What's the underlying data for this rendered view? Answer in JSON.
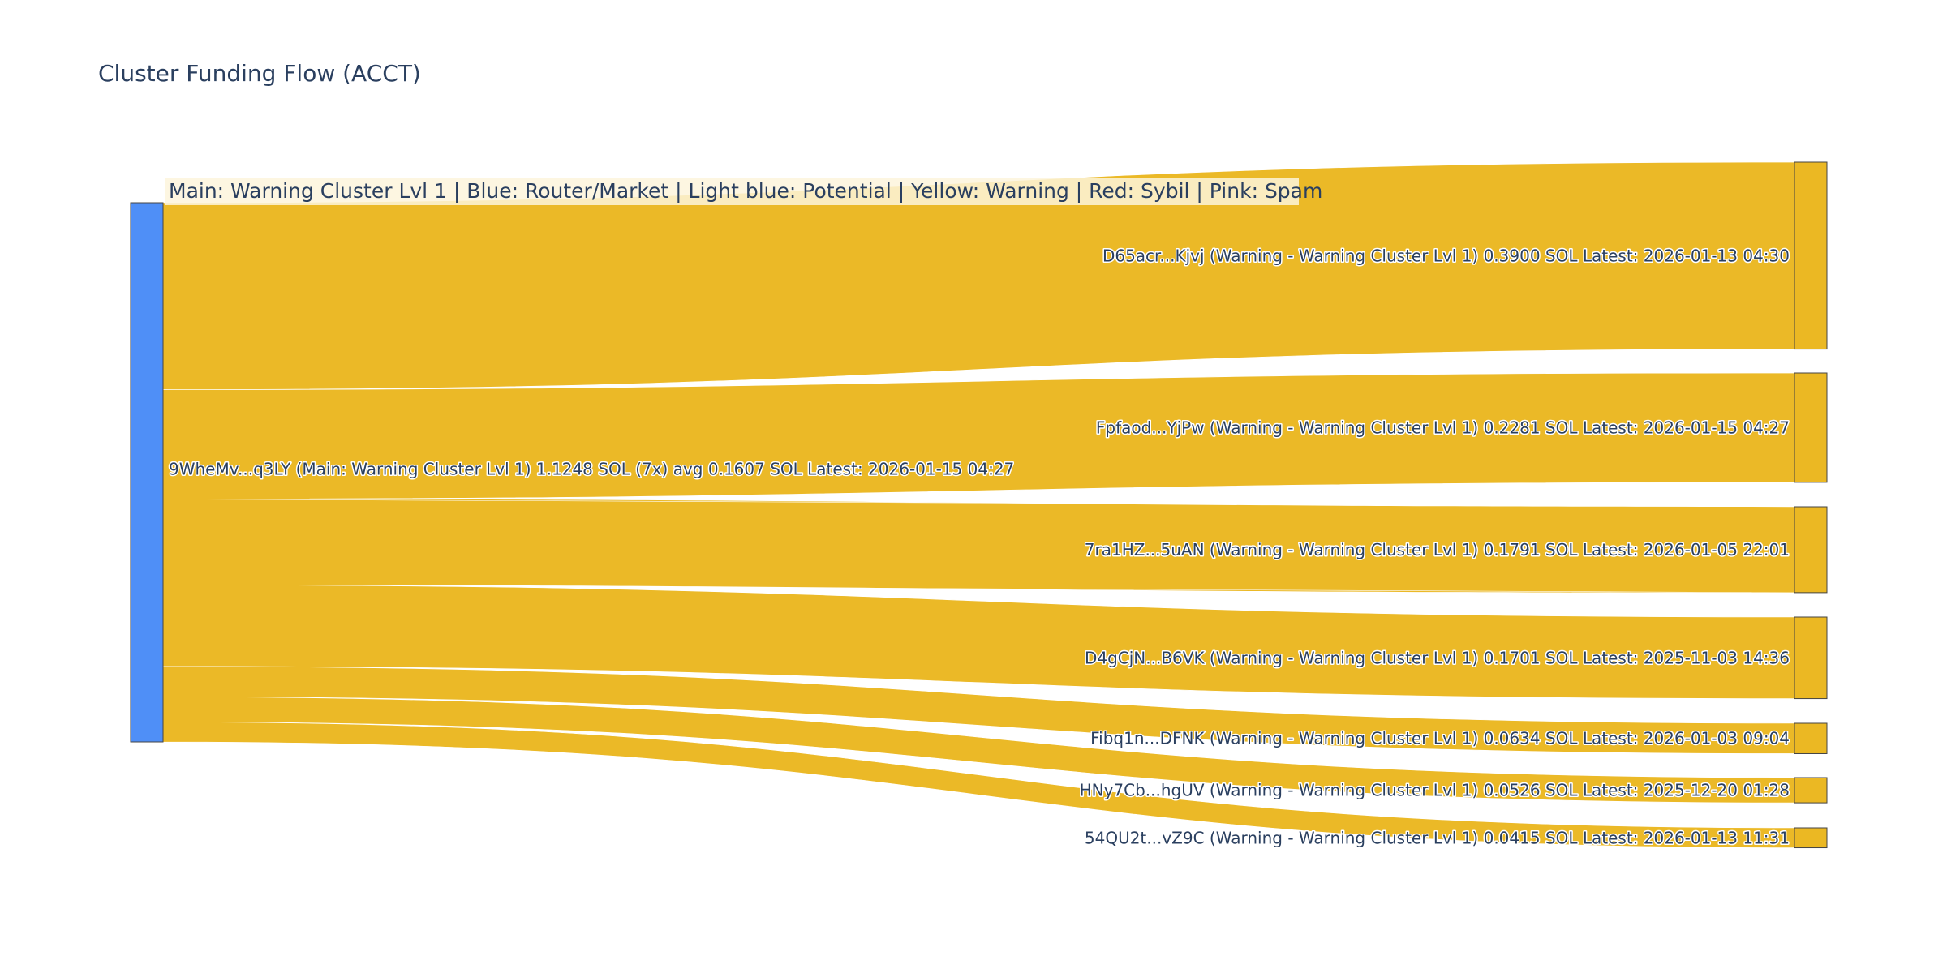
{
  "chart_data": {
    "type": "sankey",
    "title": "Cluster Funding Flow (ACCT)",
    "legend_note": "Main: Warning Cluster Lvl 1  |  Blue: Router/Market | Light blue: Potential | Yellow: Warning | Red: Sybil | Pink: Spam",
    "source": {
      "label": "9WheMv...q3LY (Main: Warning Cluster Lvl 1) 1.1248 SOL (7x) avg 0.1607 SOL Latest: 2026-01-15 04:27",
      "value": 1.1248,
      "color": "#4f8ff7"
    },
    "targets": [
      {
        "label": "D65acr...Kjvj (Warning - Warning Cluster Lvl 1) 0.3900 SOL Latest: 2026-01-13 04:30",
        "value": 0.39
      },
      {
        "label": "Fpfaod...YjPw (Warning - Warning Cluster Lvl 1) 0.2281 SOL Latest: 2026-01-15 04:27",
        "value": 0.2281
      },
      {
        "label": "7ra1HZ...5uAN (Warning - Warning Cluster Lvl 1) 0.1791 SOL Latest: 2026-01-05 22:01",
        "value": 0.1791
      },
      {
        "label": "D4gCjN...B6VK (Warning - Warning Cluster Lvl 1) 0.1701 SOL Latest: 2025-11-03 14:36",
        "value": 0.1701
      },
      {
        "label": "Fibq1n...DFNK (Warning - Warning Cluster Lvl 1) 0.0634 SOL Latest: 2026-01-03 09:04",
        "value": 0.0634
      },
      {
        "label": "HNy7Cb...hgUV (Warning - Warning Cluster Lvl 1) 0.0526 SOL Latest: 2025-12-20 01:28",
        "value": 0.0526
      },
      {
        "label": "54QU2t...vZ9C (Warning - Warning Cluster Lvl 1) 0.0415 SOL Latest: 2026-01-13 11:31",
        "value": 0.0415
      }
    ],
    "colors": {
      "source_node": "#4f8ff7",
      "target_node": "#ebb823",
      "link": "#ebb823",
      "legend_bg": "#fdf5dc",
      "text": "#2a3f5f"
    }
  }
}
